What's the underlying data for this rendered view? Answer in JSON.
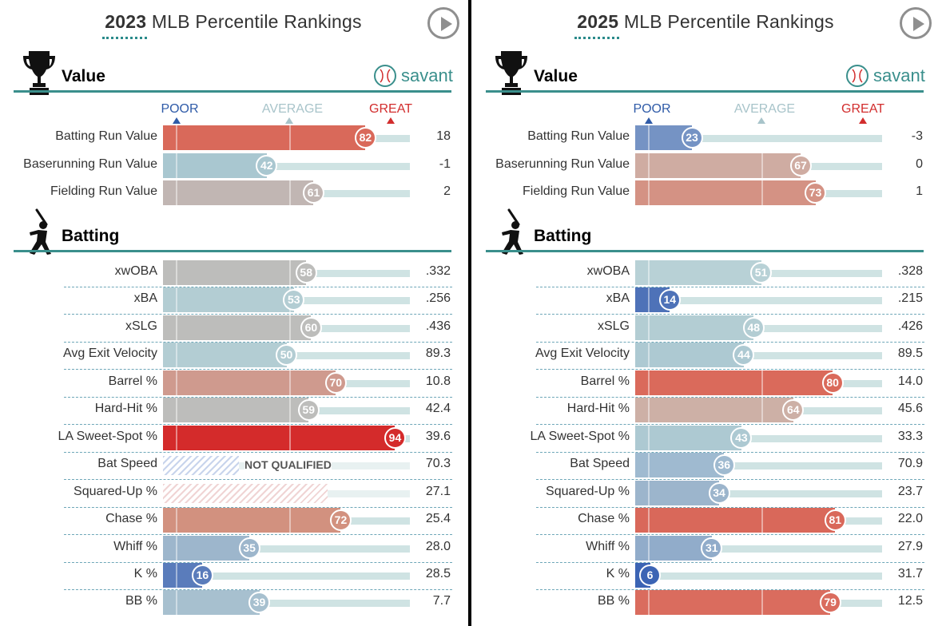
{
  "panels": [
    {
      "id": "left",
      "year": "2023",
      "title": "MLB Percentile Rankings",
      "savant": "savant",
      "scale": {
        "poor": "POOR",
        "average": "AVERAGE",
        "great": "GREAT"
      },
      "value_section": {
        "title": "Value",
        "rows": [
          {
            "label": "Batting Run Value",
            "percentile": 82,
            "value": "18",
            "color": "#d9695a"
          },
          {
            "label": "Baserunning Run Value",
            "percentile": 42,
            "value": "-1",
            "color": "#a9c7d0"
          },
          {
            "label": "Fielding Run Value",
            "percentile": 61,
            "value": "2",
            "color": "#c1b6b3"
          }
        ]
      },
      "batting_section": {
        "title": "Batting",
        "rows": [
          {
            "label": "xwOBA",
            "percentile": 58,
            "value": ".332",
            "color": "#bdbdbb"
          },
          {
            "label": "xBA",
            "percentile": 53,
            "value": ".256",
            "color": "#b3cdd3"
          },
          {
            "label": "xSLG",
            "percentile": 60,
            "value": ".436",
            "color": "#bdbdbb"
          },
          {
            "label": "Avg Exit Velocity",
            "percentile": 50,
            "value": "89.3",
            "color": "#b3cdd3"
          },
          {
            "label": "Barrel %",
            "percentile": 70,
            "value": "10.8",
            "color": "#cf9a8e"
          },
          {
            "label": "Hard-Hit %",
            "percentile": 59,
            "value": "42.4",
            "color": "#bdbdbb"
          },
          {
            "label": "LA Sweet-Spot %",
            "percentile": 94,
            "value": "39.6",
            "color": "#d42b2b"
          },
          {
            "label": "Bat Speed",
            "percentile": null,
            "value": "70.3",
            "status": "NOT QUALIFIED",
            "hatch": "blue"
          },
          {
            "label": "Squared-Up %",
            "percentile": null,
            "value": "27.1",
            "hatch": "red"
          },
          {
            "label": "Chase %",
            "percentile": 72,
            "value": "25.4",
            "color": "#d2917f"
          },
          {
            "label": "Whiff %",
            "percentile": 35,
            "value": "28.0",
            "color": "#9db6cc"
          },
          {
            "label": "K %",
            "percentile": 16,
            "value": "28.5",
            "color": "#5a7cbb"
          },
          {
            "label": "BB %",
            "percentile": 39,
            "value": "7.7",
            "color": "#a7c0cf"
          }
        ]
      }
    },
    {
      "id": "right",
      "year": "2025",
      "title": "MLB Percentile Rankings",
      "savant": "savant",
      "scale": {
        "poor": "POOR",
        "average": "AVERAGE",
        "great": "GREAT"
      },
      "value_section": {
        "title": "Value",
        "rows": [
          {
            "label": "Batting Run Value",
            "percentile": 23,
            "value": "-3",
            "color": "#7593c4"
          },
          {
            "label": "Baserunning Run Value",
            "percentile": 67,
            "value": "0",
            "color": "#cfaca2"
          },
          {
            "label": "Fielding Run Value",
            "percentile": 73,
            "value": "1",
            "color": "#d49284"
          }
        ]
      },
      "batting_section": {
        "title": "Batting",
        "rows": [
          {
            "label": "xwOBA",
            "percentile": 51,
            "value": ".328",
            "color": "#b8d1d6"
          },
          {
            "label": "xBA",
            "percentile": 14,
            "value": ".215",
            "color": "#4e72b8"
          },
          {
            "label": "xSLG",
            "percentile": 48,
            "value": ".426",
            "color": "#b3cdd3"
          },
          {
            "label": "Avg Exit Velocity",
            "percentile": 44,
            "value": "89.5",
            "color": "#adc9d2"
          },
          {
            "label": "Barrel %",
            "percentile": 80,
            "value": "14.0",
            "color": "#da6a5b"
          },
          {
            "label": "Hard-Hit %",
            "percentile": 64,
            "value": "45.6",
            "color": "#cdb0a6"
          },
          {
            "label": "LA Sweet-Spot %",
            "percentile": 43,
            "value": "33.3",
            "color": "#adc9d2"
          },
          {
            "label": "Bat Speed",
            "percentile": 36,
            "value": "70.9",
            "color": "#9fbad0"
          },
          {
            "label": "Squared-Up %",
            "percentile": 34,
            "value": "23.7",
            "color": "#9cb5cc"
          },
          {
            "label": "Chase %",
            "percentile": 81,
            "value": "22.0",
            "color": "#d9685a"
          },
          {
            "label": "Whiff %",
            "percentile": 31,
            "value": "27.9",
            "color": "#91acca"
          },
          {
            "label": "K %",
            "percentile": 6,
            "value": "31.7",
            "color": "#3c64b4"
          },
          {
            "label": "BB %",
            "percentile": 79,
            "value": "12.5",
            "color": "#da6c5e"
          }
        ]
      }
    }
  ],
  "chart_data": [
    {
      "type": "bar",
      "title": "2023 MLB Percentile Rankings",
      "xlim": [
        0,
        100
      ],
      "categories": [
        "Batting Run Value",
        "Baserunning Run Value",
        "Fielding Run Value",
        "xwOBA",
        "xBA",
        "xSLG",
        "Avg Exit Velocity",
        "Barrel %",
        "Hard-Hit %",
        "LA Sweet-Spot %",
        "Bat Speed",
        "Squared-Up %",
        "Chase %",
        "Whiff %",
        "K %",
        "BB %"
      ],
      "series": [
        {
          "values": [
            82,
            42,
            61,
            58,
            53,
            60,
            50,
            70,
            59,
            94,
            null,
            null,
            72,
            35,
            16,
            39
          ]
        }
      ],
      "stat_values": [
        "18",
        "-1",
        "2",
        ".332",
        ".256",
        ".436",
        "89.3",
        "10.8",
        "42.4",
        "39.6",
        "70.3",
        "27.1",
        "25.4",
        "28.0",
        "28.5",
        "7.7"
      ]
    },
    {
      "type": "bar",
      "title": "2025 MLB Percentile Rankings",
      "xlim": [
        0,
        100
      ],
      "categories": [
        "Batting Run Value",
        "Baserunning Run Value",
        "Fielding Run Value",
        "xwOBA",
        "xBA",
        "xSLG",
        "Avg Exit Velocity",
        "Barrel %",
        "Hard-Hit %",
        "LA Sweet-Spot %",
        "Bat Speed",
        "Squared-Up %",
        "Chase %",
        "Whiff %",
        "K %",
        "BB %"
      ],
      "series": [
        {
          "values": [
            23,
            67,
            73,
            51,
            14,
            48,
            44,
            80,
            64,
            43,
            36,
            34,
            81,
            31,
            6,
            79
          ]
        }
      ],
      "stat_values": [
        "-3",
        "0",
        "1",
        ".328",
        ".215",
        ".426",
        "89.5",
        "14.0",
        "45.6",
        "33.3",
        "70.9",
        "23.7",
        "22.0",
        "27.9",
        "31.7",
        "12.5"
      ]
    }
  ],
  "icons": {
    "trophy": "trophy-icon",
    "batter": "batter-icon",
    "play": "play-icon",
    "savant_ball": "baseball-icon"
  },
  "scale_colors": {
    "poor": "#2f5ba8",
    "average": "#a8c4ca",
    "great": "#d22d2d"
  }
}
